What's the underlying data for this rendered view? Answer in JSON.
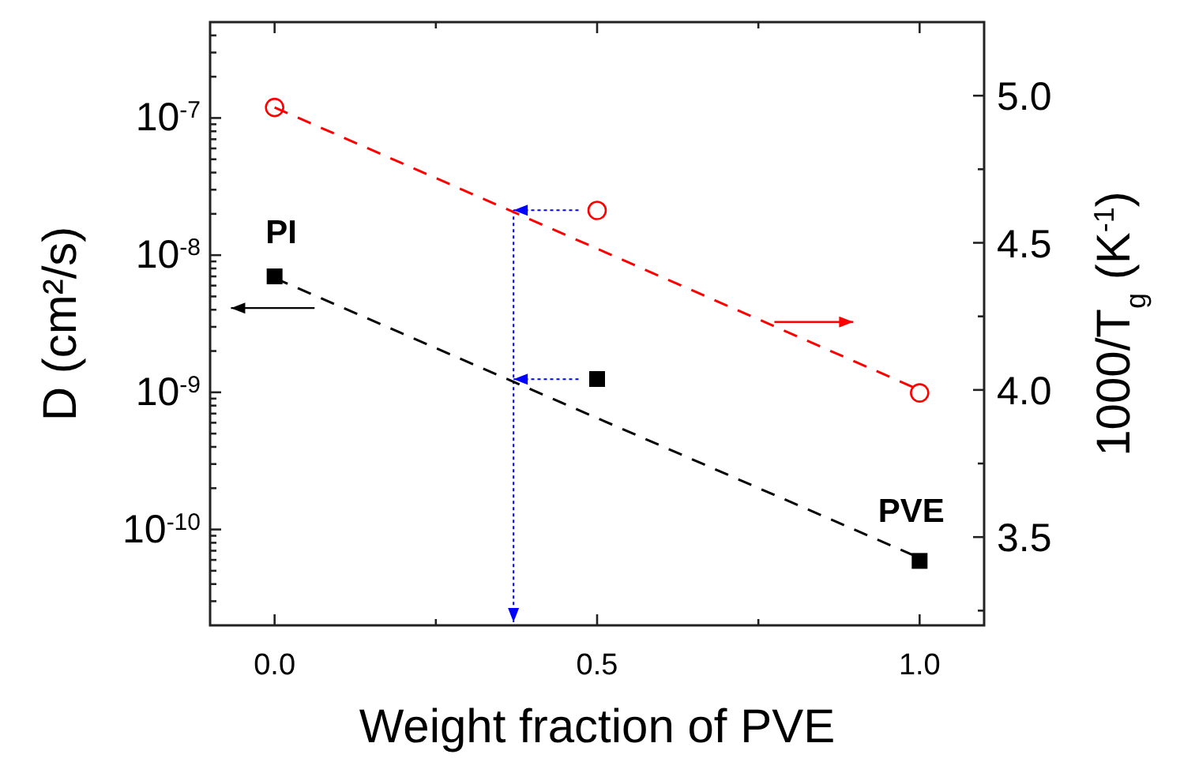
{
  "chart_data": {
    "type": "scatter",
    "xlabel": "Weight fraction of PVE",
    "ylabel": "D (cm²/s)",
    "y2label": "1000/T$_{g}$ (K$^{-1}$)",
    "log": "y",
    "grid": false,
    "xlim": [
      -0.1,
      1.1
    ],
    "xticks": [
      {
        "value": 0,
        "label": "0.0"
      },
      {
        "value": 0.25,
        "label": null
      },
      {
        "value": 0.5,
        "label": "0.5"
      },
      {
        "value": 0.75,
        "label": null
      },
      {
        "value": 1,
        "label": "1.0"
      }
    ],
    "ylim": [
      2e-11,
      5e-07
    ],
    "yticks": [
      {
        "value": 1e-10,
        "label": "10$^{-10}$"
      },
      {
        "value": 1e-09,
        "label": "10$^{-9}$"
      },
      {
        "value": 1e-08,
        "label": "10$^{-8}$"
      },
      {
        "value": 1e-07,
        "label": "10$^{-7}$"
      },
      {
        "value": 3e-11,
        "label": null
      },
      {
        "value": 4e-11,
        "label": null
      },
      {
        "value": 5e-11,
        "label": null
      },
      {
        "value": 6e-11,
        "label": null
      },
      {
        "value": 7e-11,
        "label": null
      },
      {
        "value": 8e-11,
        "label": null
      },
      {
        "value": 9e-11,
        "label": null
      },
      {
        "value": 2e-10,
        "label": null
      },
      {
        "value": 3e-10,
        "label": null
      },
      {
        "value": 4e-10,
        "label": null
      },
      {
        "value": 5e-10,
        "label": null
      },
      {
        "value": 6e-10,
        "label": null
      },
      {
        "value": 7e-10,
        "label": null
      },
      {
        "value": 8e-10,
        "label": null
      },
      {
        "value": 9e-10,
        "label": null
      },
      {
        "value": 2e-09,
        "label": null
      },
      {
        "value": 3e-09,
        "label": null
      },
      {
        "value": 4e-09,
        "label": null
      },
      {
        "value": 5e-09,
        "label": null
      },
      {
        "value": 6e-09,
        "label": null
      },
      {
        "value": 7e-09,
        "label": null
      },
      {
        "value": 8e-09,
        "label": null
      },
      {
        "value": 9e-09,
        "label": null
      },
      {
        "value": 2e-08,
        "label": null
      },
      {
        "value": 3e-08,
        "label": null
      },
      {
        "value": 4e-08,
        "label": null
      },
      {
        "value": 5e-08,
        "label": null
      },
      {
        "value": 6e-08,
        "label": null
      },
      {
        "value": 7e-08,
        "label": null
      },
      {
        "value": 8e-08,
        "label": null
      },
      {
        "value": 9e-08,
        "label": null
      },
      {
        "value": 2e-07,
        "label": null
      },
      {
        "value": 3e-07,
        "label": null
      },
      {
        "value": 4e-07,
        "label": null
      }
    ],
    "y2lim": [
      3.2,
      5.25
    ],
    "y2ticks": [
      {
        "value": 3.25,
        "label": null
      },
      {
        "value": 3.5,
        "label": "3.5"
      },
      {
        "value": 3.75,
        "label": null
      },
      {
        "value": 4,
        "label": "4.0"
      },
      {
        "value": 4.25,
        "label": null
      },
      {
        "value": 4.5,
        "label": "4.5"
      },
      {
        "value": 4.75,
        "label": null
      },
      {
        "value": 5,
        "label": "5.0"
      }
    ],
    "series": [
      {
        "color": "#000000",
        "marker": "square",
        "x": [
          0,
          0.5,
          1
        ],
        "values": [
          7e-09,
          1.25e-09,
          5.9e-11
        ]
      },
      {
        "type": "line",
        "color": "#000000",
        "line_style": "dashed",
        "x": [
          0,
          1
        ],
        "values": [
          6.8e-09,
          6.2e-11
        ]
      },
      {
        "color": "#ff0000",
        "marker": "circle",
        "axis": "y2",
        "x": [
          0,
          0.5,
          1
        ],
        "values": [
          4.96,
          4.61,
          3.99
        ]
      },
      {
        "type": "line",
        "color": "#ff0000",
        "line_style": "dashed",
        "axis": "y2",
        "x": [
          0,
          1
        ],
        "values": [
          4.96,
          4.0
        ]
      }
    ],
    "annotations": [
      "PI",
      "PVE"
    ]
  }
}
